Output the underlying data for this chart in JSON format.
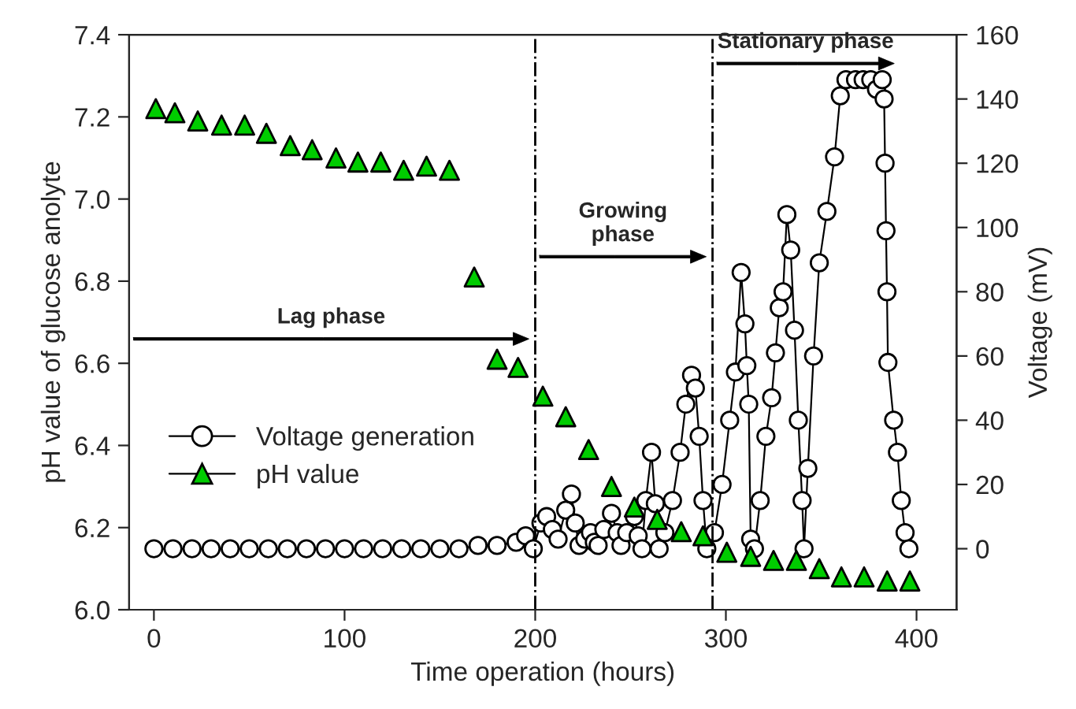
{
  "chart_data": {
    "type": "scatter",
    "xlabel": "Time operation (hours)",
    "ylabel": "pH value of glucose anolyte",
    "y2label": "Voltage (mV)",
    "xlim": [
      -13,
      421
    ],
    "xticks": [
      0,
      100,
      200,
      300,
      400
    ],
    "ylim": [
      6.0,
      7.4
    ],
    "yticks": [
      {
        "value": 6,
        "label": "6.0"
      },
      6.2,
      6.4,
      6.6,
      6.8,
      {
        "value": 7,
        "label": "7.0"
      },
      7.2,
      7.4
    ],
    "y2lim": [
      -19,
      160
    ],
    "y2ticks": [
      0,
      20,
      40,
      60,
      80,
      100,
      120,
      140,
      160
    ],
    "grid": false,
    "legend": "lower left",
    "series": [
      {
        "name": "Voltage generation",
        "type": "line",
        "axis": "y2",
        "marker": "circle",
        "color": "#ffffff",
        "x": [
          0,
          10,
          20,
          30,
          40,
          50,
          60,
          70,
          80,
          90,
          100,
          110,
          120,
          130,
          140,
          150,
          160,
          170,
          180,
          190,
          195,
          199,
          203,
          206,
          209,
          212,
          216,
          219,
          221,
          223,
          226,
          229,
          231,
          233,
          236,
          240,
          243,
          245,
          248,
          252,
          254,
          256,
          258,
          261,
          263,
          265,
          268,
          272,
          276,
          279,
          282,
          284,
          286,
          288,
          290,
          294,
          298,
          302,
          305,
          308,
          310,
          311,
          312,
          313,
          315,
          318,
          321,
          324,
          326,
          328,
          330,
          332,
          334,
          336,
          338,
          340,
          341,
          343,
          346,
          349,
          353,
          357,
          360,
          363,
          368,
          372,
          376,
          379,
          382,
          383,
          383.5,
          384,
          384.5,
          385,
          388,
          390,
          392,
          394,
          396
        ],
        "values": [
          0,
          0,
          0,
          0,
          0,
          0,
          0,
          0,
          0,
          0,
          0,
          0,
          0,
          0,
          0,
          0,
          0,
          1,
          1,
          2,
          4,
          0,
          8,
          10,
          6,
          3,
          12,
          17,
          8,
          1,
          3,
          5,
          2,
          1,
          6,
          11,
          5,
          1,
          5,
          10,
          4,
          0,
          15,
          30,
          14,
          0,
          5,
          15,
          30,
          45,
          54,
          50,
          35,
          15,
          0,
          5,
          20,
          40,
          55,
          86,
          70,
          57,
          45,
          3,
          0,
          15,
          35,
          47,
          61,
          75,
          80,
          104,
          93,
          68,
          40,
          15,
          0,
          25,
          60,
          89,
          105,
          122,
          141,
          146,
          146,
          146,
          146,
          143,
          146,
          140,
          120,
          99,
          80,
          58,
          40,
          30,
          15,
          5,
          0
        ]
      },
      {
        "name": "pH value",
        "marker": "triangle",
        "color": "#00cc00",
        "x": [
          1,
          11,
          23,
          35.5,
          47.6,
          59,
          71.5,
          83,
          95.5,
          107,
          119,
          131,
          143,
          155,
          168,
          180,
          191,
          204,
          216,
          228,
          240,
          252,
          264,
          276.6,
          288,
          300.5,
          313,
          325,
          337,
          349,
          360.6,
          372.5,
          384.6,
          396.5
        ],
        "values": [
          7.22,
          7.21,
          7.19,
          7.18,
          7.18,
          7.16,
          7.13,
          7.12,
          7.1,
          7.09,
          7.09,
          7.07,
          7.08,
          7.07,
          6.81,
          6.61,
          6.59,
          6.52,
          6.47,
          6.39,
          6.3,
          6.25,
          6.22,
          6.19,
          6.18,
          6.14,
          6.13,
          6.12,
          6.12,
          6.1,
          6.08,
          6.08,
          6.07,
          6.07
        ]
      }
    ],
    "ref_lines": [
      {
        "axis": "x",
        "value": 200,
        "line_style": "dashdot",
        "color": "#000000"
      },
      {
        "axis": "x",
        "value": 293,
        "line_style": "dashdot",
        "color": "#000000"
      }
    ],
    "annotations": [
      "Lag phase",
      "Growing\nphase",
      "Stationary phase"
    ]
  }
}
